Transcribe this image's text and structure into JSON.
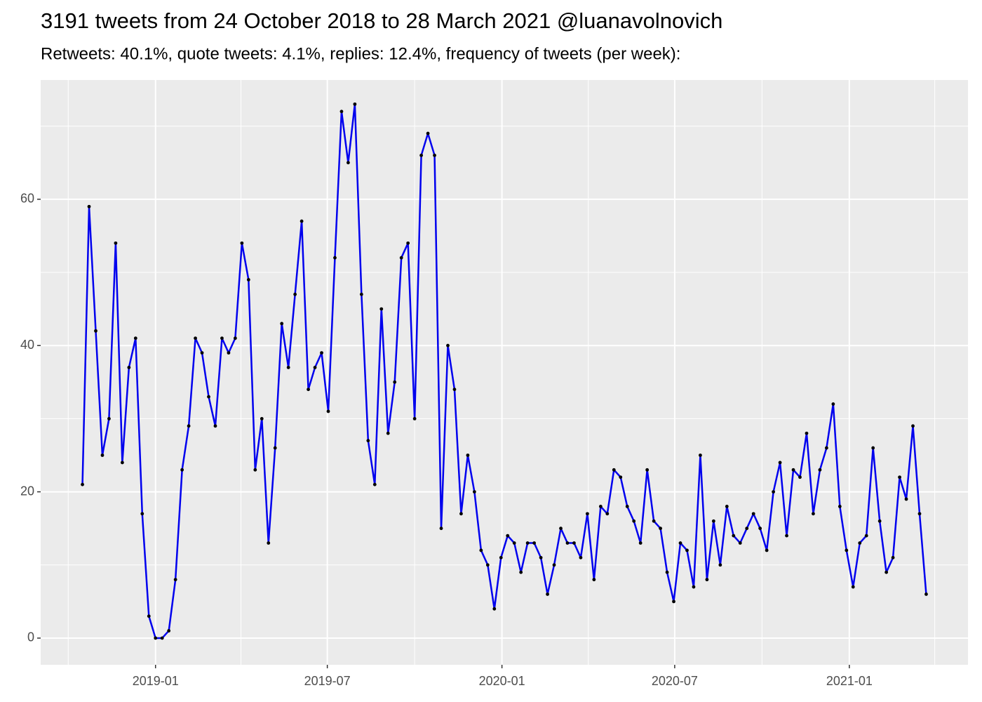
{
  "chart_data": {
    "type": "line",
    "title": "3191 tweets from 24 October 2018 to 28 March 2021 @luanavolnovich",
    "subtitle": "Retweets: 40.1%, quote tweets: 4.1%, replies: 12.4%, frequency of tweets (per week):",
    "x": [
      "2018-10-16",
      "2018-10-23",
      "2018-10-30",
      "2018-11-06",
      "2018-11-13",
      "2018-11-20",
      "2018-11-27",
      "2018-12-04",
      "2018-12-11",
      "2018-12-18",
      "2018-12-25",
      "2019-01-01",
      "2019-01-08",
      "2019-01-15",
      "2019-01-22",
      "2019-01-29",
      "2019-02-05",
      "2019-02-12",
      "2019-02-19",
      "2019-02-26",
      "2019-03-05",
      "2019-03-12",
      "2019-03-19",
      "2019-03-26",
      "2019-04-02",
      "2019-04-09",
      "2019-04-16",
      "2019-04-23",
      "2019-04-30",
      "2019-05-07",
      "2019-05-14",
      "2019-05-21",
      "2019-05-28",
      "2019-06-04",
      "2019-06-11",
      "2019-06-18",
      "2019-06-25",
      "2019-07-02",
      "2019-07-09",
      "2019-07-16",
      "2019-07-23",
      "2019-07-30",
      "2019-08-06",
      "2019-08-13",
      "2019-08-20",
      "2019-08-27",
      "2019-09-03",
      "2019-09-10",
      "2019-09-17",
      "2019-09-24",
      "2019-10-01",
      "2019-10-08",
      "2019-10-15",
      "2019-10-22",
      "2019-10-29",
      "2019-11-05",
      "2019-11-12",
      "2019-11-19",
      "2019-11-26",
      "2019-12-03",
      "2019-12-10",
      "2019-12-17",
      "2019-12-24",
      "2019-12-31",
      "2020-01-07",
      "2020-01-14",
      "2020-01-21",
      "2020-01-28",
      "2020-02-04",
      "2020-02-11",
      "2020-02-18",
      "2020-02-25",
      "2020-03-03",
      "2020-03-10",
      "2020-03-17",
      "2020-03-24",
      "2020-03-31",
      "2020-04-07",
      "2020-04-14",
      "2020-04-21",
      "2020-04-28",
      "2020-05-05",
      "2020-05-12",
      "2020-05-19",
      "2020-05-26",
      "2020-06-02",
      "2020-06-09",
      "2020-06-16",
      "2020-06-23",
      "2020-06-30",
      "2020-07-07",
      "2020-07-14",
      "2020-07-21",
      "2020-07-28",
      "2020-08-04",
      "2020-08-11",
      "2020-08-18",
      "2020-08-25",
      "2020-09-01",
      "2020-09-08",
      "2020-09-15",
      "2020-09-22",
      "2020-09-29",
      "2020-10-06",
      "2020-10-13",
      "2020-10-20",
      "2020-10-27",
      "2020-11-03",
      "2020-11-10",
      "2020-11-17",
      "2020-11-24",
      "2020-12-01",
      "2020-12-08",
      "2020-12-15",
      "2020-12-22",
      "2020-12-29",
      "2021-01-05",
      "2021-01-12",
      "2021-01-19",
      "2021-01-26",
      "2021-02-02",
      "2021-02-09",
      "2021-02-16",
      "2021-02-23",
      "2021-03-02",
      "2021-03-09",
      "2021-03-16",
      "2021-03-23"
    ],
    "series": [
      {
        "color": "#0000ee",
        "point_color": "#000000",
        "values": [
          21,
          59,
          42,
          25,
          30,
          54,
          24,
          37,
          41,
          17,
          3,
          0,
          0,
          1,
          8,
          23,
          29,
          41,
          39,
          33,
          29,
          41,
          39,
          41,
          54,
          49,
          23,
          30,
          13,
          26,
          43,
          37,
          47,
          57,
          34,
          37,
          39,
          31,
          52,
          72,
          65,
          73,
          47,
          27,
          21,
          45,
          28,
          35,
          52,
          54,
          30,
          66,
          69,
          66,
          15,
          40,
          34,
          17,
          25,
          20,
          12,
          10,
          4,
          11,
          14,
          13,
          9,
          13,
          13,
          11,
          6,
          10,
          15,
          13,
          13,
          11,
          17,
          8,
          18,
          17,
          23,
          22,
          18,
          16,
          13,
          23,
          16,
          15,
          9,
          5,
          13,
          12,
          7,
          25,
          8,
          16,
          10,
          18,
          14,
          13,
          15,
          17,
          15,
          12,
          20,
          24,
          14,
          23,
          22,
          28,
          17,
          23,
          26,
          32,
          18,
          12,
          7,
          13,
          14,
          26,
          16,
          9,
          11,
          22,
          19,
          29,
          17,
          6
        ]
      }
    ],
    "xlim": [
      "2018-09-02",
      "2021-05-06"
    ],
    "xticks": [
      {
        "value": "2019-01-01",
        "label": "2019-01"
      },
      {
        "value": "2019-07-01",
        "label": "2019-07"
      },
      {
        "value": "2020-01-01",
        "label": "2020-01"
      },
      {
        "value": "2020-07-01",
        "label": "2020-07"
      },
      {
        "value": "2021-01-01",
        "label": "2021-01"
      }
    ],
    "xticks_minor": [
      "2018-10-01",
      "2019-04-01",
      "2019-10-01",
      "2020-04-01",
      "2020-10-01",
      "2021-04-01"
    ],
    "ylim": [
      -3.65,
      76.3
    ],
    "yticks": [
      0,
      20,
      40,
      60
    ],
    "yticks_minor": [
      10,
      30,
      50,
      70
    ],
    "grid": true
  }
}
